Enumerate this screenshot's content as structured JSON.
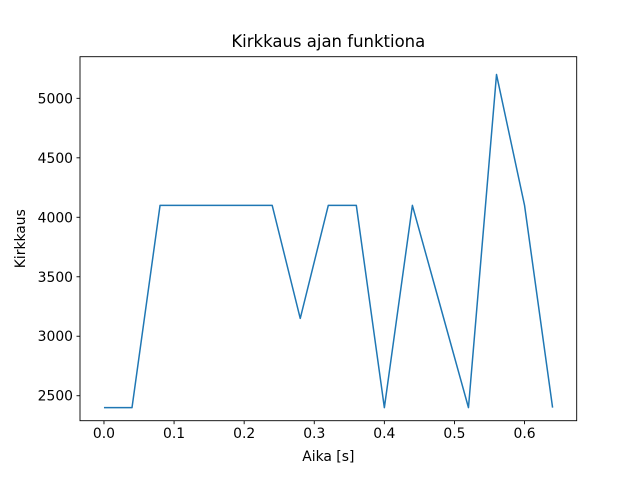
{
  "chart_data": {
    "type": "line",
    "title": "Kirkkaus ajan funktiona",
    "xlabel": "Aika [s]",
    "ylabel": "Kirkkaus",
    "x": [
      0.0,
      0.04,
      0.08,
      0.12,
      0.16,
      0.2,
      0.24,
      0.28,
      0.32,
      0.36,
      0.4,
      0.44,
      0.48,
      0.52,
      0.56,
      0.6,
      0.64
    ],
    "y": [
      2400,
      2400,
      4100,
      4100,
      4100,
      4100,
      4100,
      3150,
      4100,
      4100,
      2400,
      4100,
      3250,
      2400,
      5200,
      4100,
      2400
    ],
    "xlim": [
      -0.0342,
      0.6744
    ],
    "ylim": [
      2290,
      5350
    ],
    "x_ticks": [
      0.0,
      0.1,
      0.2,
      0.3,
      0.4,
      0.5,
      0.6
    ],
    "x_tick_labels": [
      "0.0",
      "0.1",
      "0.2",
      "0.3",
      "0.4",
      "0.5",
      "0.6"
    ],
    "y_ticks": [
      2500,
      3000,
      3500,
      4000,
      4500,
      5000
    ],
    "y_tick_labels": [
      "2500",
      "3000",
      "3500",
      "4000",
      "4500",
      "5000"
    ],
    "line_color": "#1f77b4",
    "spine_color": "#000000",
    "background_color": "#ffffff",
    "grid": "off",
    "legend": "none"
  }
}
